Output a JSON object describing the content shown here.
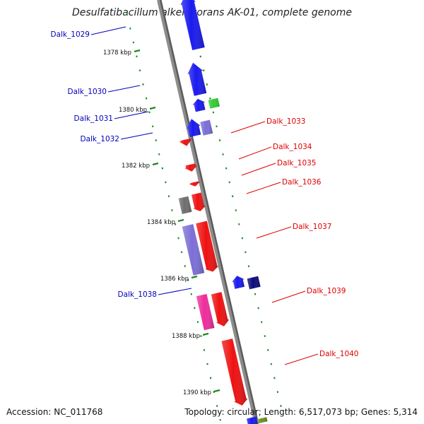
{
  "title": "Desulfatibacillum alkenivorans AK-01, complete genome",
  "footer": {
    "accession": "Accession: NC_011768",
    "summary": "Topology: circular; Length: 6,517,073 bp; Genes: 5,314"
  },
  "colors": {
    "forward_label": "#0000bb",
    "reverse_label": "#dd0000",
    "backbone": "#8c8c8c",
    "tick": "#1f8a1f"
  },
  "kbp_ticks": [
    {
      "label": "1378 kbp"
    },
    {
      "label": "1380 kbp"
    },
    {
      "label": "1382 kbp"
    },
    {
      "label": "1384 kbp"
    },
    {
      "label": "1386 kbp"
    },
    {
      "label": "1388 kbp"
    },
    {
      "label": "1390 kbp"
    }
  ],
  "genes": [
    {
      "id": "g1029",
      "label": "Dalk_1029",
      "strand": "forward",
      "color": "#1a1aee"
    },
    {
      "id": "g1030",
      "label": "Dalk_1030",
      "strand": "forward",
      "color": "#1a1aee"
    },
    {
      "id": "g1031",
      "label": "Dalk_1031",
      "strand": "forward",
      "color": "#33cc33"
    },
    {
      "id": "g1031b",
      "label": "",
      "strand": "forward",
      "color": "#1a1aee"
    },
    {
      "id": "g1032",
      "label": "Dalk_1032",
      "strand": "forward",
      "color": "#7b6fd6"
    },
    {
      "id": "g1032b",
      "label": "",
      "strand": "forward",
      "color": "#1a1aee"
    },
    {
      "id": "g1033",
      "label": "Dalk_1033",
      "strand": "reverse",
      "color": "#ee1111"
    },
    {
      "id": "g1034",
      "label": "Dalk_1034",
      "strand": "reverse",
      "color": "#ee1111"
    },
    {
      "id": "g1035",
      "label": "Dalk_1035",
      "strand": "reverse",
      "color": "#ee1111"
    },
    {
      "id": "g1036",
      "label": "Dalk_1036",
      "strand": "reverse",
      "color": "#6e6e6e"
    },
    {
      "id": "g1036b",
      "label": "",
      "strand": "reverse",
      "color": "#ee1111"
    },
    {
      "id": "g1037",
      "label": "Dalk_1037",
      "strand": "reverse",
      "color": "#7b6fd6"
    },
    {
      "id": "g1037b",
      "label": "",
      "strand": "reverse",
      "color": "#ee1111"
    },
    {
      "id": "g1038",
      "label": "Dalk_1038",
      "strand": "forward",
      "color": "#0b0b7a"
    },
    {
      "id": "g1038b",
      "label": "",
      "strand": "forward",
      "color": "#1a1aee"
    },
    {
      "id": "g1039",
      "label": "Dalk_1039",
      "strand": "reverse",
      "color": "#ee2d9a"
    },
    {
      "id": "g1039b",
      "label": "",
      "strand": "reverse",
      "color": "#ee1111"
    },
    {
      "id": "g1040",
      "label": "Dalk_1040",
      "strand": "reverse",
      "color": "#ee1111"
    },
    {
      "id": "gEdge1",
      "label": "",
      "strand": "forward",
      "color": "#6b8f2a"
    },
    {
      "id": "gEdge2",
      "label": "",
      "strand": "forward",
      "color": "#1a1aee"
    }
  ]
}
